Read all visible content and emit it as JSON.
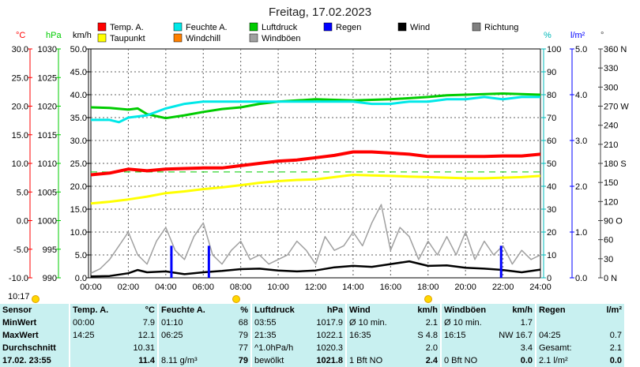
{
  "title": "Freitag, 17.02.2023",
  "colors": {
    "temp": "#ff0000",
    "humidity": "#00e8e8",
    "pressure": "#00cc00",
    "rain": "#0000ff",
    "wind": "#000000",
    "direction": "#808080",
    "dewpoint": "#ffff00",
    "windchill": "#ff8000",
    "gusts": "#a0a0a0",
    "grid": "#606060",
    "background": "#ffffff",
    "stats_bg": "#c8f0f0"
  },
  "chart_data": {
    "type": "line",
    "x_ticks": [
      "00:00",
      "02:00",
      "04:00",
      "06:00",
      "08:00",
      "10:00",
      "12:00",
      "14:00",
      "16:00",
      "18:00",
      "20:00",
      "22:00",
      "24:00"
    ],
    "axes": {
      "temp": {
        "unit": "°C",
        "ticks": [
          "30.0",
          "25.0",
          "20.0",
          "15.0",
          "10.0",
          "5.0",
          "0.0",
          "-5.0",
          "-10.0"
        ],
        "range": [
          -10,
          30
        ]
      },
      "pressure": {
        "unit": "hPa",
        "ticks": [
          "1030",
          "1025",
          "1020",
          "1015",
          "1010",
          "1005",
          "1000",
          "995",
          "990"
        ],
        "range": [
          990,
          1030
        ]
      },
      "wind": {
        "unit": "km/h",
        "ticks": [
          "50.0",
          "45.0",
          "40.0",
          "35.0",
          "30.0",
          "25.0",
          "20.0",
          "15.0",
          "10.0",
          "5.0",
          "0.0"
        ],
        "range": [
          0,
          50
        ]
      },
      "humidity": {
        "unit": "%",
        "ticks": [
          "100",
          "90",
          "80",
          "70",
          "60",
          "50",
          "40",
          "30",
          "20",
          "10",
          "0"
        ],
        "range": [
          0,
          100
        ]
      },
      "rain": {
        "unit": "l/m²",
        "ticks": [
          "5.0",
          "4.0",
          "3.0",
          "2.0",
          "1.0",
          "0.0"
        ],
        "range": [
          0,
          5
        ]
      },
      "direction": {
        "unit": "°",
        "ticks": [
          "360 N",
          "330",
          "300",
          "270 W",
          "240",
          "210",
          "180 S",
          "150",
          "120",
          "90 O",
          "60",
          "30",
          "0   N"
        ],
        "range": [
          0,
          360
        ]
      }
    },
    "legend": [
      {
        "key": "temp",
        "label": "Temp. A."
      },
      {
        "key": "humidity",
        "label": "Feuchte A."
      },
      {
        "key": "pressure",
        "label": "Luftdruck"
      },
      {
        "key": "rain",
        "label": "Regen"
      },
      {
        "key": "wind",
        "label": "Wind"
      },
      {
        "key": "direction",
        "label": "Richtung"
      },
      {
        "key": "dewpoint",
        "label": "Taupunkt"
      },
      {
        "key": "windchill",
        "label": "Windchill"
      },
      {
        "key": "gusts",
        "label": "Windböen"
      }
    ],
    "reference_line": {
      "axis": "temp",
      "value": 8.5
    },
    "series": [
      {
        "name": "Temp. A.",
        "axis": "temp",
        "x": [
          0,
          1,
          2,
          3,
          4,
          5,
          6,
          7,
          8,
          9,
          10,
          11,
          12,
          13,
          14,
          15,
          16,
          17,
          18,
          19,
          20,
          21,
          22,
          23,
          24
        ],
        "values": [
          8.0,
          8.3,
          9.0,
          8.7,
          9.0,
          9.1,
          9.2,
          9.2,
          9.6,
          10.0,
          10.4,
          10.6,
          11.0,
          11.4,
          12.0,
          12.0,
          11.8,
          11.6,
          11.2,
          11.2,
          11.2,
          11.2,
          11.3,
          11.3,
          11.6
        ]
      },
      {
        "name": "Taupunkt",
        "axis": "temp",
        "x": [
          0,
          1,
          2,
          3,
          4,
          5,
          6,
          7,
          8,
          9,
          10,
          11,
          12,
          13,
          14,
          15,
          16,
          17,
          18,
          19,
          20,
          21,
          22,
          23,
          24
        ],
        "values": [
          3.0,
          3.3,
          3.7,
          4.2,
          4.8,
          5.1,
          5.5,
          5.8,
          6.2,
          6.6,
          6.9,
          7.1,
          7.2,
          7.6,
          8.0,
          7.9,
          7.8,
          7.7,
          7.6,
          7.5,
          7.4,
          7.4,
          7.5,
          7.6,
          7.8
        ]
      },
      {
        "name": "Feuchte A.",
        "axis": "humidity",
        "x": [
          0,
          1,
          1.5,
          2,
          3,
          4,
          4.5,
          5,
          6,
          7,
          8,
          9,
          10,
          11,
          12,
          13,
          14,
          15,
          16,
          17,
          18,
          19,
          20,
          21,
          22,
          23,
          24
        ],
        "values": [
          69,
          69,
          68,
          70,
          71,
          74,
          75,
          76,
          77,
          77,
          77,
          77,
          77,
          77,
          77,
          77,
          77,
          76,
          76,
          77,
          77,
          78,
          78,
          79,
          78,
          79,
          79
        ]
      },
      {
        "name": "Luftdruck",
        "axis": "pressure",
        "x": [
          0,
          1,
          2,
          2.5,
          3,
          4,
          5,
          6,
          7,
          8,
          9,
          10,
          11,
          12,
          13,
          14,
          15,
          16,
          17,
          18,
          19,
          20,
          21,
          22,
          23,
          24
        ],
        "values": [
          1019.8,
          1019.7,
          1019.4,
          1019.6,
          1018.6,
          1017.9,
          1018.4,
          1019.0,
          1019.5,
          1019.8,
          1020.4,
          1020.8,
          1021.0,
          1021.2,
          1021.1,
          1021.0,
          1021.1,
          1021.2,
          1021.4,
          1021.6,
          1021.9,
          1022.0,
          1022.1,
          1022.2,
          1022.1,
          1022.0
        ]
      },
      {
        "name": "Wind",
        "axis": "wind",
        "x": [
          0,
          1,
          2,
          2.5,
          3,
          4,
          5,
          6,
          7,
          8,
          9,
          10,
          11,
          12,
          13,
          14,
          15,
          16,
          17,
          18,
          19,
          20,
          21,
          22,
          23,
          24
        ],
        "values": [
          0.3,
          0.4,
          1.0,
          1.7,
          1.2,
          1.4,
          0.8,
          1.2,
          1.5,
          1.9,
          2.0,
          1.6,
          1.4,
          1.6,
          2.3,
          2.6,
          2.4,
          3.0,
          3.6,
          2.6,
          2.7,
          2.2,
          2.0,
          1.7,
          1.2,
          1.8
        ]
      },
      {
        "name": "Windböen",
        "axis": "wind",
        "x": [
          0,
          0.5,
          1,
          1.5,
          2,
          2.5,
          3,
          3.5,
          4,
          4.5,
          5,
          5.5,
          6,
          6.5,
          7,
          7.5,
          8,
          8.5,
          9,
          9.5,
          10,
          10.5,
          11,
          11.5,
          12,
          12.5,
          13,
          13.5,
          14,
          14.5,
          15,
          15.5,
          16,
          16.5,
          17,
          17.5,
          18,
          18.5,
          19,
          19.5,
          20,
          20.5,
          21,
          21.5,
          22,
          22.5,
          23,
          23.5,
          24
        ],
        "values": [
          1,
          2,
          4,
          7,
          10,
          5,
          3,
          8,
          11,
          6,
          4,
          9,
          12,
          5,
          3,
          6,
          8,
          4,
          5,
          3,
          4,
          5,
          8,
          6,
          3,
          9,
          6,
          7,
          10,
          7,
          12,
          16,
          6,
          11,
          9,
          4,
          8,
          5,
          9,
          5,
          10,
          4,
          8,
          5,
          7,
          3,
          6,
          4,
          5
        ]
      },
      {
        "name": "Regen",
        "axis": "rain",
        "x": [
          4.3,
          6.3,
          21.9
        ],
        "values": [
          0.7,
          0.7,
          0.7
        ]
      }
    ]
  },
  "timebar": {
    "time": "10:17"
  },
  "stats": {
    "header": [
      "Sensor",
      "Temp. A.",
      "°C",
      "Feuchte A.",
      "%",
      "Luftdruck",
      "hPa",
      "Wind",
      "km/h",
      "Windböen",
      "km/h",
      "Regen",
      "l/m²"
    ],
    "rows": [
      [
        "MinWert",
        "00:00",
        "7.9",
        "01:10",
        "68",
        "03:55",
        "1017.9",
        "Ø 10 min.",
        "2.1",
        "Ø 10 min.",
        "1.7",
        "",
        ""
      ],
      [
        "MaxWert",
        "14:25",
        "12.1",
        "06:25",
        "79",
        "21:35",
        "1022.1",
        "16:35",
        "S 4.8",
        "16:15",
        "NW 16.7",
        "04:25",
        "0.7"
      ],
      [
        "Durchschnitt",
        "",
        "10.31",
        "",
        "77",
        "^1.0hPa/h",
        "1020.3",
        "",
        "2.0",
        "",
        "3.4",
        "Gesamt:",
        "2.1"
      ],
      [
        "17.02. 23:55",
        "",
        "11.4",
        "8.11 g/m³",
        "79",
        "bewölkt",
        "1021.8",
        "1 Bft NO",
        "2.4",
        "0 Bft NO",
        "0.0",
        "2.1 l/m²",
        "0.0"
      ]
    ]
  }
}
